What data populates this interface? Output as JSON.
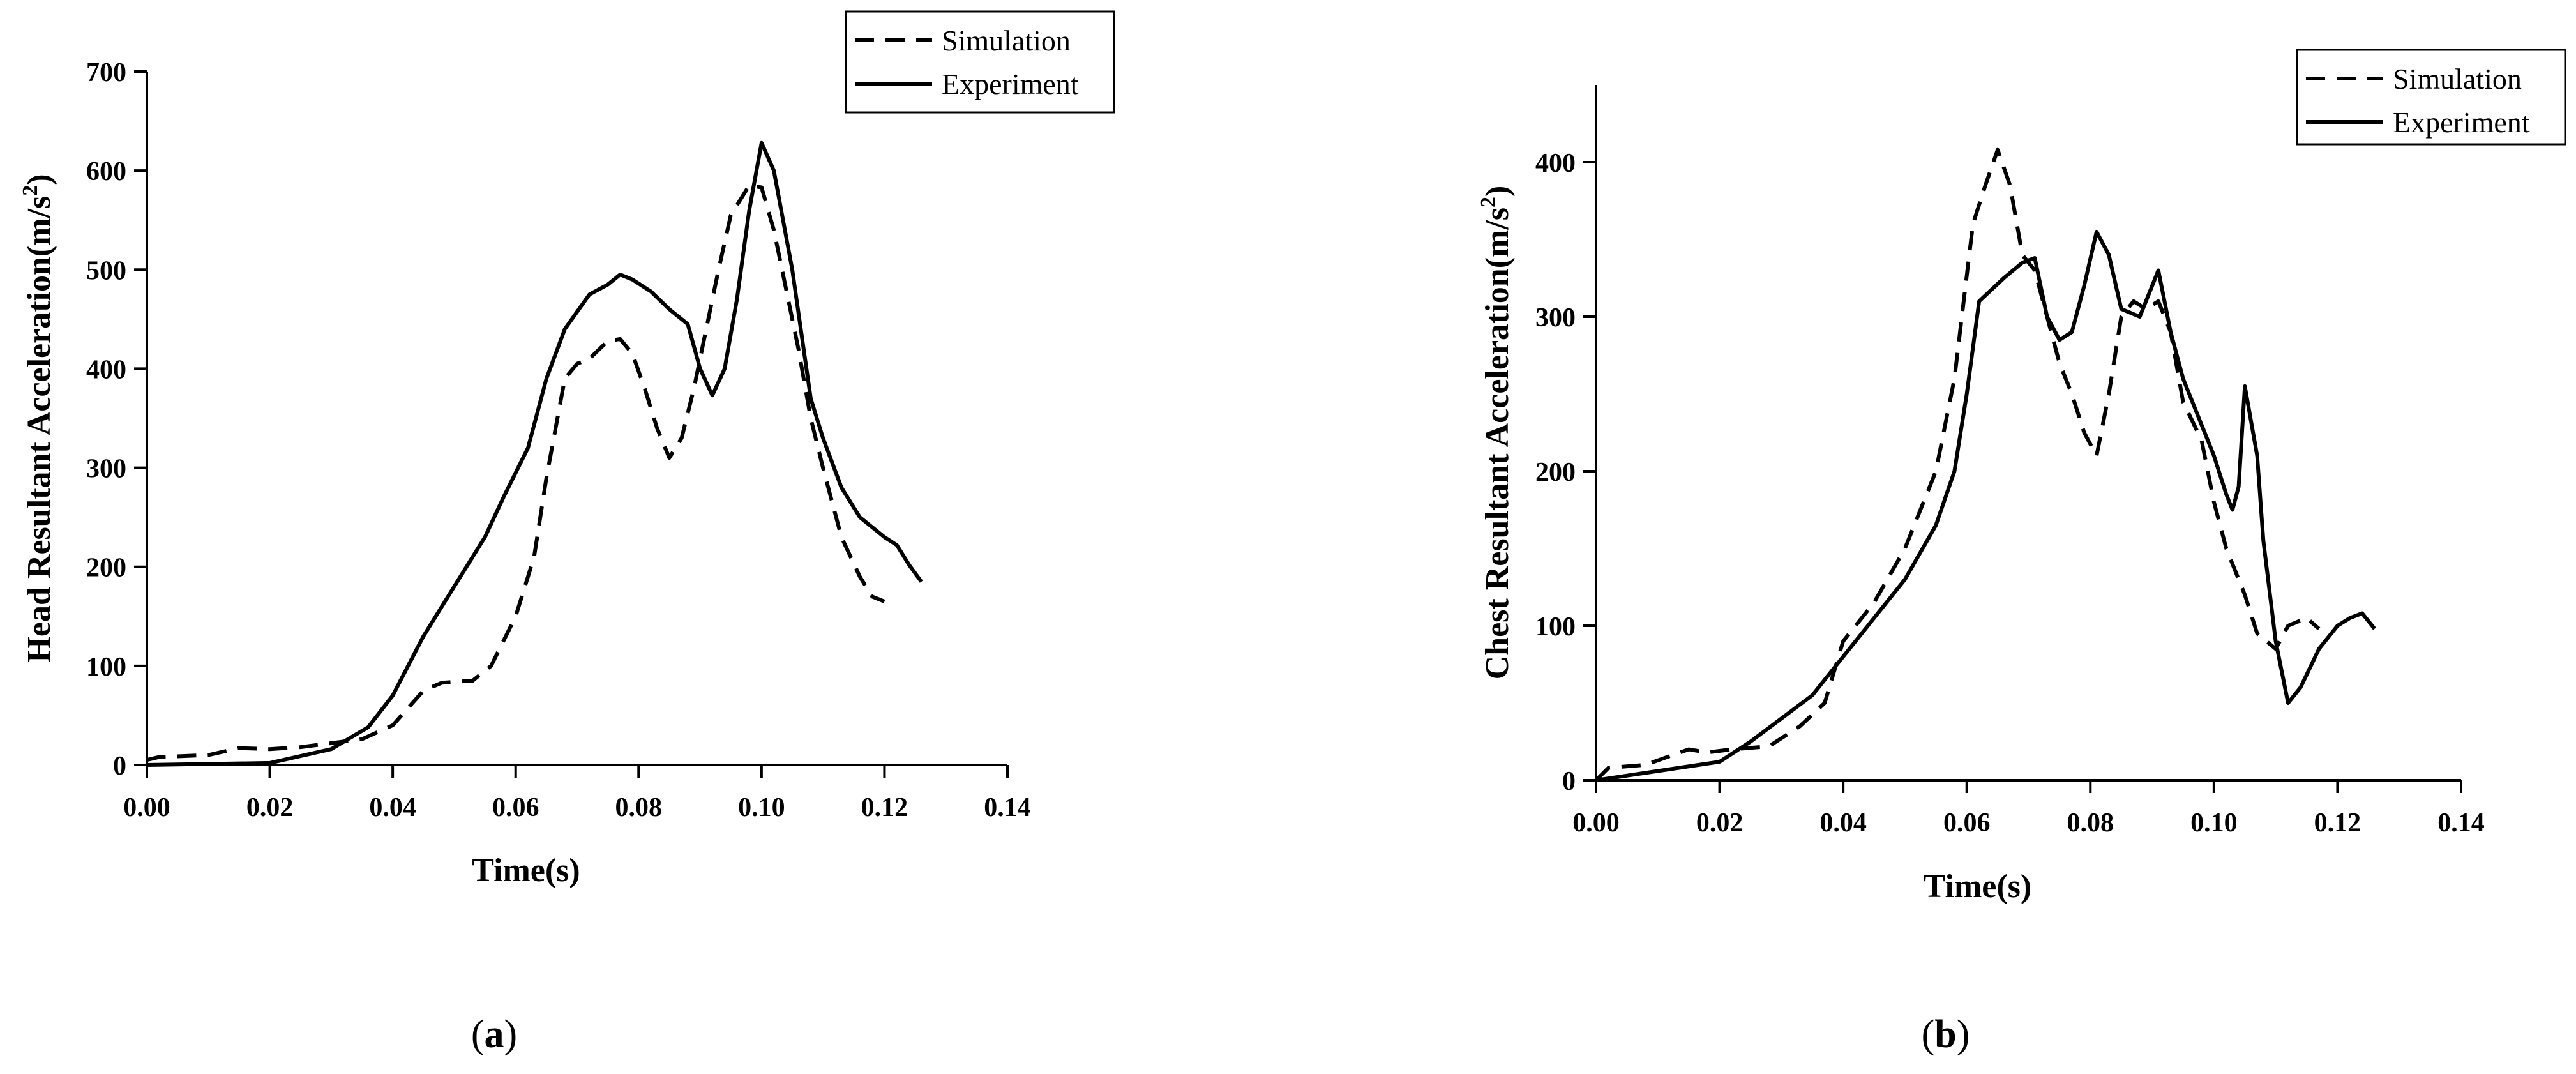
{
  "chart_data": [
    {
      "type": "line",
      "panel_label": "(a)",
      "panel_letter": "a",
      "title": "",
      "xlabel": "Time(s)",
      "ylabel": "Head Resultant Acceleration(m/s",
      "ylabel_superscript": "2",
      "ylabel_close": ")",
      "xlim": [
        0,
        0.14
      ],
      "ylim": [
        0,
        700
      ],
      "x_ticks": [
        "0.00",
        "0.02",
        "0.04",
        "0.06",
        "0.08",
        "0.10",
        "0.12",
        "0.14"
      ],
      "y_ticks": [
        "0",
        "100",
        "200",
        "300",
        "400",
        "500",
        "600",
        "700"
      ],
      "grid": false,
      "legend": {
        "position": "top-right",
        "entries": [
          "Simulation",
          "Experiment"
        ]
      },
      "series": [
        {
          "name": "Simulation",
          "style": "dashed",
          "points": [
            [
              0,
              5
            ],
            [
              0.002,
              8
            ],
            [
              0.01,
              10
            ],
            [
              0.015,
              17
            ],
            [
              0.02,
              16
            ],
            [
              0.025,
              18
            ],
            [
              0.03,
              22
            ],
            [
              0.035,
              26
            ],
            [
              0.04,
              40
            ],
            [
              0.045,
              75
            ],
            [
              0.048,
              83
            ],
            [
              0.053,
              85
            ],
            [
              0.056,
              100
            ],
            [
              0.06,
              150
            ],
            [
              0.063,
              210
            ],
            [
              0.065,
              290
            ],
            [
              0.068,
              390
            ],
            [
              0.07,
              405
            ],
            [
              0.072,
              410
            ],
            [
              0.075,
              428
            ],
            [
              0.077,
              430
            ],
            [
              0.079,
              415
            ],
            [
              0.081,
              380
            ],
            [
              0.083,
              340
            ],
            [
              0.085,
              310
            ],
            [
              0.087,
              330
            ],
            [
              0.089,
              380
            ],
            [
              0.091,
              440
            ],
            [
              0.093,
              500
            ],
            [
              0.095,
              555
            ],
            [
              0.098,
              585
            ],
            [
              0.1,
              583
            ],
            [
              0.102,
              540
            ],
            [
              0.104,
              480
            ],
            [
              0.106,
              420
            ],
            [
              0.108,
              350
            ],
            [
              0.11,
              300
            ],
            [
              0.113,
              230
            ],
            [
              0.116,
              190
            ],
            [
              0.118,
              170
            ],
            [
              0.12,
              165
            ]
          ]
        },
        {
          "name": "Experiment",
          "style": "solid",
          "points": [
            [
              0,
              0
            ],
            [
              0.02,
              2
            ],
            [
              0.03,
              16
            ],
            [
              0.036,
              38
            ],
            [
              0.04,
              70
            ],
            [
              0.045,
              130
            ],
            [
              0.05,
              180
            ],
            [
              0.055,
              230
            ],
            [
              0.058,
              270
            ],
            [
              0.062,
              320
            ],
            [
              0.065,
              390
            ],
            [
              0.068,
              440
            ],
            [
              0.072,
              475
            ],
            [
              0.075,
              485
            ],
            [
              0.077,
              495
            ],
            [
              0.079,
              490
            ],
            [
              0.082,
              478
            ],
            [
              0.085,
              460
            ],
            [
              0.088,
              445
            ],
            [
              0.09,
              400
            ],
            [
              0.092,
              373
            ],
            [
              0.094,
              400
            ],
            [
              0.096,
              470
            ],
            [
              0.098,
              560
            ],
            [
              0.1,
              628
            ],
            [
              0.102,
              600
            ],
            [
              0.105,
              500
            ],
            [
              0.108,
              370
            ],
            [
              0.11,
              330
            ],
            [
              0.113,
              280
            ],
            [
              0.116,
              250
            ],
            [
              0.12,
              230
            ],
            [
              0.122,
              222
            ],
            [
              0.124,
              202
            ],
            [
              0.126,
              185
            ]
          ]
        }
      ]
    },
    {
      "type": "line",
      "panel_label": "(b)",
      "panel_letter": "b",
      "title": "",
      "xlabel": "Time(s)",
      "ylabel": "Chest Resultant Acceleration(m/s",
      "ylabel_superscript": "2",
      "ylabel_close": ")",
      "xlim": [
        0,
        0.14
      ],
      "ylim": [
        0,
        450
      ],
      "x_ticks": [
        "0.00",
        "0.02",
        "0.04",
        "0.06",
        "0.08",
        "0.10",
        "0.12",
        "0.14"
      ],
      "y_ticks": [
        "0",
        "100",
        "200",
        "300",
        "400"
      ],
      "grid": false,
      "legend": {
        "position": "top-right",
        "entries": [
          "Simulation",
          "Experiment"
        ]
      },
      "series": [
        {
          "name": "Simulation",
          "style": "dashed",
          "points": [
            [
              0,
              0
            ],
            [
              0.002,
              8
            ],
            [
              0.008,
              10
            ],
            [
              0.015,
              20
            ],
            [
              0.018,
              18
            ],
            [
              0.022,
              20
            ],
            [
              0.028,
              22
            ],
            [
              0.033,
              35
            ],
            [
              0.037,
              50
            ],
            [
              0.04,
              90
            ],
            [
              0.045,
              115
            ],
            [
              0.05,
              150
            ],
            [
              0.055,
              200
            ],
            [
              0.058,
              260
            ],
            [
              0.061,
              360
            ],
            [
              0.063,
              385
            ],
            [
              0.065,
              408
            ],
            [
              0.067,
              385
            ],
            [
              0.069,
              340
            ],
            [
              0.071,
              330
            ],
            [
              0.073,
              300
            ],
            [
              0.075,
              270
            ],
            [
              0.077,
              250
            ],
            [
              0.079,
              225
            ],
            [
              0.081,
              210
            ],
            [
              0.083,
              250
            ],
            [
              0.085,
              300
            ],
            [
              0.087,
              310
            ],
            [
              0.089,
              305
            ],
            [
              0.091,
              310
            ],
            [
              0.093,
              290
            ],
            [
              0.095,
              245
            ],
            [
              0.098,
              220
            ],
            [
              0.1,
              180
            ],
            [
              0.102,
              150
            ],
            [
              0.105,
              120
            ],
            [
              0.107,
              95
            ],
            [
              0.11,
              85
            ],
            [
              0.112,
              100
            ],
            [
              0.115,
              105
            ],
            [
              0.117,
              98
            ]
          ]
        },
        {
          "name": "Experiment",
          "style": "solid",
          "points": [
            [
              0,
              0
            ],
            [
              0.01,
              6
            ],
            [
              0.02,
              12
            ],
            [
              0.025,
              25
            ],
            [
              0.03,
              40
            ],
            [
              0.035,
              55
            ],
            [
              0.04,
              80
            ],
            [
              0.045,
              105
            ],
            [
              0.05,
              130
            ],
            [
              0.055,
              165
            ],
            [
              0.058,
              200
            ],
            [
              0.06,
              250
            ],
            [
              0.062,
              310
            ],
            [
              0.066,
              325
            ],
            [
              0.069,
              335
            ],
            [
              0.071,
              338
            ],
            [
              0.073,
              300
            ],
            [
              0.075,
              285
            ],
            [
              0.077,
              290
            ],
            [
              0.079,
              320
            ],
            [
              0.081,
              355
            ],
            [
              0.083,
              340
            ],
            [
              0.085,
              305
            ],
            [
              0.088,
              300
            ],
            [
              0.09,
              320
            ],
            [
              0.091,
              330
            ],
            [
              0.093,
              290
            ],
            [
              0.095,
              260
            ],
            [
              0.098,
              230
            ],
            [
              0.1,
              210
            ],
            [
              0.102,
              185
            ],
            [
              0.103,
              175
            ],
            [
              0.104,
              190
            ],
            [
              0.105,
              255
            ],
            [
              0.107,
              210
            ],
            [
              0.108,
              155
            ],
            [
              0.11,
              90
            ],
            [
              0.112,
              50
            ],
            [
              0.114,
              60
            ],
            [
              0.117,
              85
            ],
            [
              0.12,
              100
            ],
            [
              0.122,
              105
            ],
            [
              0.124,
              108
            ],
            [
              0.126,
              98
            ]
          ]
        }
      ]
    }
  ]
}
